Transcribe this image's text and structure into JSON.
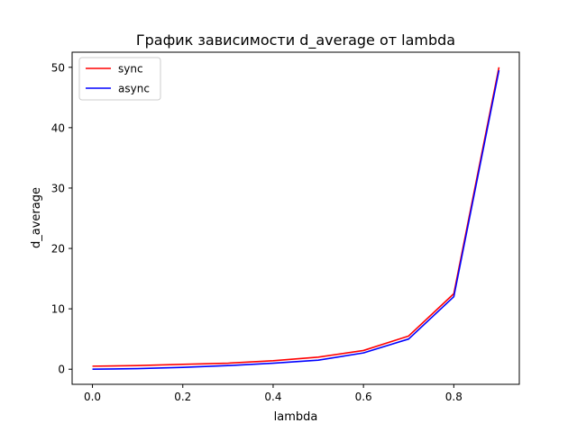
{
  "chart_data": {
    "type": "line",
    "title": "График зависимости d_average от lambda",
    "xlabel": "lambda",
    "ylabel": "d_average",
    "xlim": [
      -0.045,
      0.945
    ],
    "ylim": [
      -2.5,
      52.5
    ],
    "xticks": [
      0.0,
      0.2,
      0.4,
      0.6,
      0.8
    ],
    "xtick_labels": [
      "0.0",
      "0.2",
      "0.4",
      "0.6",
      "0.8"
    ],
    "yticks": [
      0,
      10,
      20,
      30,
      40,
      50
    ],
    "ytick_labels": [
      "0",
      "10",
      "20",
      "30",
      "40",
      "50"
    ],
    "grid": false,
    "legend_position": "upper-left",
    "x": [
      0.0,
      0.1,
      0.2,
      0.3,
      0.4,
      0.5,
      0.6,
      0.7,
      0.8,
      0.9
    ],
    "series": [
      {
        "name": "sync",
        "color": "#ff0000",
        "values": [
          0.5,
          0.6,
          0.8,
          1.0,
          1.4,
          2.0,
          3.1,
          5.5,
          12.5,
          50.0
        ]
      },
      {
        "name": "async",
        "color": "#0000ff",
        "values": [
          0.0,
          0.1,
          0.3,
          0.6,
          1.0,
          1.5,
          2.7,
          5.0,
          12.0,
          49.5
        ]
      }
    ]
  }
}
